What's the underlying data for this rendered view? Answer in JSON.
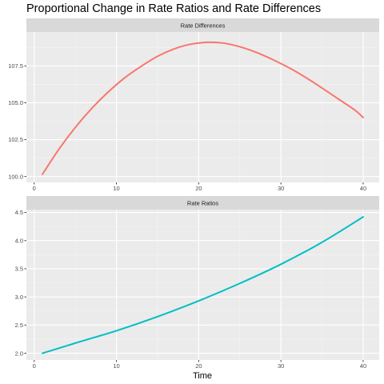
{
  "chart_data": {
    "type": "line",
    "title": "Proportional Change in Rate Ratios and Rate Differences",
    "xlabel": "Time",
    "ylabel": "",
    "grid": true,
    "legend": "none",
    "xlim": [
      -0.95,
      41.95
    ],
    "x_ticks": [
      0,
      10,
      20,
      30,
      40
    ],
    "panels": [
      {
        "strip": "Rate Differences",
        "color": "#F8766D",
        "ylim": [
          99.6,
          109.8
        ],
        "y_ticks": [
          100.0,
          102.5,
          105.0,
          107.5
        ],
        "y_tick_labels": [
          "100.0",
          "102.5",
          "105.0",
          "107.5"
        ],
        "x": [
          1,
          3,
          5,
          7,
          9,
          11,
          13,
          15,
          17,
          19,
          21,
          23,
          25,
          27,
          29,
          31,
          33,
          35,
          37,
          39,
          40
        ],
        "y": [
          100.15,
          101.85,
          103.33,
          104.62,
          105.73,
          106.69,
          107.47,
          108.15,
          108.65,
          108.97,
          109.1,
          109.05,
          108.8,
          108.42,
          107.93,
          107.37,
          106.72,
          106.0,
          105.25,
          104.5,
          104.0
        ]
      },
      {
        "strip": "Rate Ratios",
        "color": "#00BFC4",
        "ylim": [
          1.88,
          4.55
        ],
        "y_ticks": [
          2.0,
          2.5,
          3.0,
          3.5,
          4.0,
          4.5
        ],
        "y_tick_labels": [
          "2.0",
          "2.5",
          "3.0",
          "3.5",
          "4.0",
          "4.5"
        ],
        "x": [
          1,
          5,
          10,
          15,
          20,
          25,
          30,
          35,
          40
        ],
        "y": [
          2.0,
          2.18,
          2.4,
          2.65,
          2.93,
          3.24,
          3.58,
          3.97,
          4.42
        ]
      }
    ]
  }
}
